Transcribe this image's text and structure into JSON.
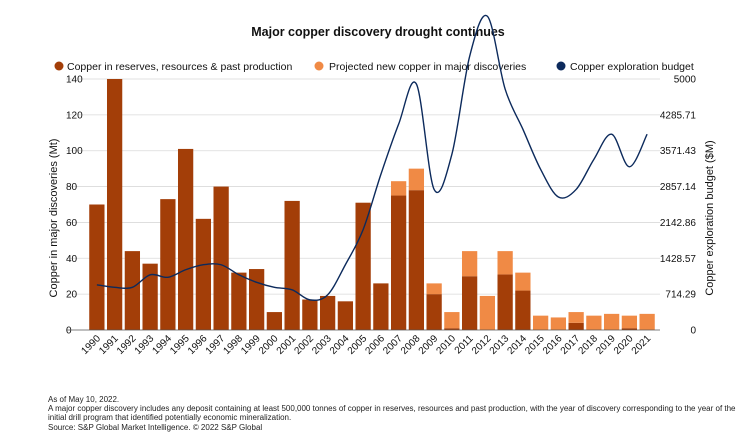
{
  "chart_data": {
    "type": "bar",
    "title": "Major copper discovery drought continues",
    "legend": [
      {
        "key": "reserves",
        "label": "Copper in reserves, resources & past production",
        "color": "#A33E08"
      },
      {
        "key": "projected",
        "label": "Projected new copper in major discoveries",
        "color": "#F08A45"
      },
      {
        "key": "budget",
        "label": "Copper exploration budget",
        "color": "#0C2A5C"
      }
    ],
    "legend_position": "top",
    "categories": [
      "1990",
      "1991",
      "1992",
      "1993",
      "1994",
      "1995",
      "1996",
      "1997",
      "1998",
      "1999",
      "2000",
      "2001",
      "2002",
      "2003",
      "2004",
      "2005",
      "2006",
      "2007",
      "2008",
      "2009",
      "2010",
      "2011",
      "2012",
      "2013",
      "2014",
      "2015",
      "2016",
      "2017",
      "2018",
      "2019",
      "2020",
      "2021"
    ],
    "series": [
      {
        "name": "Copper in reserves, resources & past production",
        "kind": "bar",
        "stack": "total",
        "values": [
          70,
          140,
          44,
          37,
          73,
          101,
          62,
          80,
          32,
          34,
          10,
          72,
          17,
          19,
          16,
          71,
          26,
          75,
          78,
          20,
          1,
          30,
          0,
          31,
          22,
          0,
          0,
          4,
          0,
          0,
          1,
          0
        ]
      },
      {
        "name": "Projected new copper in major discoveries",
        "kind": "bar",
        "stack": "total",
        "values": [
          0,
          0,
          0,
          0,
          0,
          0,
          0,
          0,
          0,
          0,
          0,
          0,
          0,
          0,
          0,
          0,
          0,
          8,
          12,
          6,
          9,
          14,
          19,
          13,
          10,
          8,
          7,
          6,
          8,
          9,
          7,
          9
        ]
      },
      {
        "name": "Copper exploration budget",
        "kind": "line",
        "axis": "right",
        "values": [
          900,
          850,
          850,
          1100,
          1050,
          1200,
          1300,
          1300,
          1100,
          950,
          850,
          800,
          600,
          700,
          1300,
          2000,
          3100,
          4100,
          4900,
          2800,
          3500,
          5450,
          6250,
          4800,
          4000,
          3200,
          2650,
          2800,
          3400,
          3900,
          3250,
          3900
        ]
      }
    ],
    "ylabel": "Copper in major discoveries (Mt)",
    "y2label": "Copper exploration budget ($M)",
    "ylim": [
      0,
      140
    ],
    "y2lim": [
      0,
      5000
    ],
    "yticks": [
      "0",
      "20",
      "40",
      "60",
      "80",
      "100",
      "120",
      "140"
    ],
    "y2ticks": [
      "0",
      "714.29",
      "1428.57",
      "2142.86",
      "2857.14",
      "3571.43",
      "4285.71",
      "5000"
    ],
    "grid": true
  },
  "footnote": {
    "line1": "As of May 10, 2022.",
    "line2": "A major copper discovery includes any deposit containing at least 500,000 tonnes of copper in reserves, resources and past production, with the year of discovery corresponding to the year of the initial drill program that identified potentially economic mineralization.",
    "line3": "Source: S&P Global Market Intelligence. © 2022 S&P Global"
  }
}
